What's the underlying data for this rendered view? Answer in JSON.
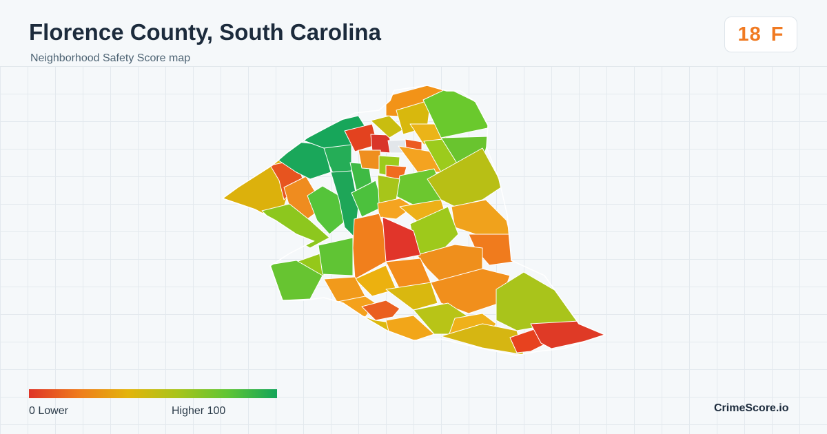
{
  "header": {
    "title": "Florence County, South Carolina",
    "subtitle": "Neighborhood Safety Score map"
  },
  "score": {
    "value": "18",
    "grade": "F",
    "color": "#f07a22"
  },
  "legend": {
    "min_label": "0  Lower",
    "max_label": "Higher  100",
    "colors": [
      "#df3427",
      "#ef7b1c",
      "#e3b40b",
      "#a8c41a",
      "#5fc534",
      "#13a55a"
    ]
  },
  "brand": "CrimeScore.io",
  "map": {
    "no_data_color": "#e2e6ea"
  }
}
